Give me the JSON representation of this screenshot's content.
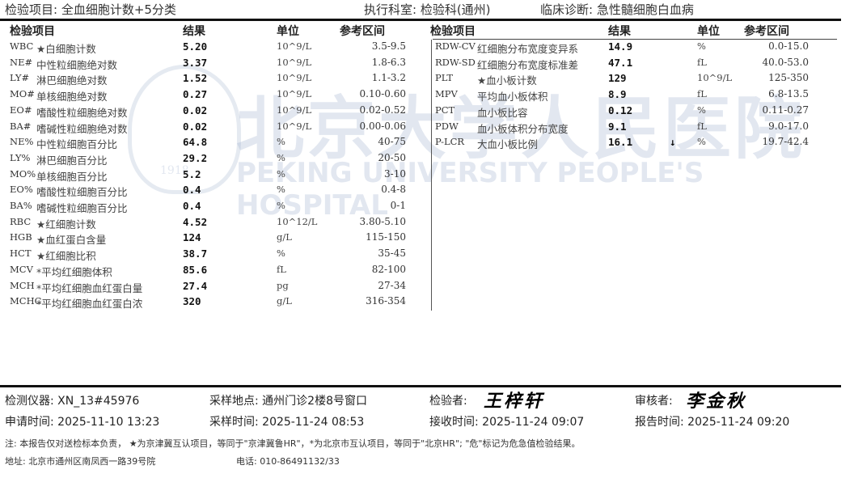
{
  "header": {
    "test_item": "检验项目: 全血细胞计数+5分类",
    "department": "执行科室: 检验科(通州)",
    "diagnosis": "临床诊断:  急性髓细胞白血病"
  },
  "watermark": {
    "cn": "北京大学人民医院",
    "en": "PEKING UNIVERSITY PEOPLE'S HOSPITAL",
    "seal_year": "1918"
  },
  "columns": {
    "item": "检验项目",
    "result": "结果",
    "unit": "单位",
    "ref": "参考区间"
  },
  "left_rows": [
    {
      "code": "WBC",
      "name": "★白细胞计数",
      "result": "5.20",
      "unit": "10^9/L",
      "ref": "3.5-9.5"
    },
    {
      "code": "NE#",
      "name": "中性粒细胞绝对数",
      "result": "3.37",
      "unit": "10^9/L",
      "ref": "1.8-6.3"
    },
    {
      "code": "LY#",
      "name": "淋巴细胞绝对数",
      "result": "1.52",
      "unit": "10^9/L",
      "ref": "1.1-3.2"
    },
    {
      "code": "MO#",
      "name": "单核细胞绝对数",
      "result": "0.27",
      "unit": "10^9/L",
      "ref": "0.10-0.60"
    },
    {
      "code": "EO#",
      "name": "嗜酸性粒细胞绝对数",
      "result": "0.02",
      "unit": "10^9/L",
      "ref": "0.02-0.52"
    },
    {
      "code": "BA#",
      "name": "嗜碱性粒细胞绝对数",
      "result": "0.02",
      "unit": "10^9/L",
      "ref": "0.00-0.06"
    },
    {
      "code": "NE%",
      "name": "中性粒细胞百分比",
      "result": "64.8",
      "unit": "%",
      "ref": "40-75"
    },
    {
      "code": "LY%",
      "name": "淋巴细胞百分比",
      "result": "29.2",
      "unit": "%",
      "ref": "20-50"
    },
    {
      "code": "MO%",
      "name": "单核细胞百分比",
      "result": "5.2",
      "unit": "%",
      "ref": "3-10"
    },
    {
      "code": "EO%",
      "name": "嗜酸性粒细胞百分比",
      "result": "0.4",
      "unit": "%",
      "ref": "0.4-8"
    },
    {
      "code": "BA%",
      "name": "嗜碱性粒细胞百分比",
      "result": "0.4",
      "unit": "%",
      "ref": "0-1"
    },
    {
      "code": "RBC",
      "name": "★红细胞计数",
      "result": "4.52",
      "unit": "10^12/L",
      "ref": "3.80-5.10"
    },
    {
      "code": "HGB",
      "name": "★血红蛋白含量",
      "result": "124",
      "unit": "g/L",
      "ref": "115-150"
    },
    {
      "code": "HCT",
      "name": "★红细胞比积",
      "result": "38.7",
      "unit": "%",
      "ref": "35-45"
    },
    {
      "code": "MCV",
      "name": "*平均红细胞体积",
      "result": "85.6",
      "unit": "fL",
      "ref": "82-100"
    },
    {
      "code": "MCH",
      "name": "*平均红细胞血红蛋白量",
      "result": "27.4",
      "unit": "pg",
      "ref": "27-34"
    },
    {
      "code": "MCHC",
      "name": "*平均红细胞血红蛋白浓",
      "result": "320",
      "unit": "g/L",
      "ref": "316-354"
    }
  ],
  "right_rows": [
    {
      "code": "RDW-CV",
      "name": "红细胞分布宽度变异系",
      "result": "14.9",
      "flag": "",
      "unit": "%",
      "ref": "0.0-15.0"
    },
    {
      "code": "RDW-SD",
      "name": "红细胞分布宽度标准差",
      "result": "47.1",
      "flag": "",
      "unit": "fL",
      "ref": "40.0-53.0"
    },
    {
      "code": "PLT",
      "name": "★血小板计数",
      "result": "129",
      "flag": "",
      "unit": "10^9/L",
      "ref": "125-350"
    },
    {
      "code": "MPV",
      "name": "平均血小板体积",
      "result": "8.9",
      "flag": "",
      "unit": "fL",
      "ref": "6.8-13.5"
    },
    {
      "code": "PCT",
      "name": "血小板比容",
      "result": "0.12",
      "flag": "",
      "unit": "%",
      "ref": "0.11-0.27"
    },
    {
      "code": "PDW",
      "name": "血小板体积分布宽度",
      "result": "9.1",
      "flag": "",
      "unit": "fL",
      "ref": "9.0-17.0"
    },
    {
      "code": "P-LCR",
      "name": "大血小板比例",
      "result": "16.1",
      "flag": "↓",
      "unit": "%",
      "ref": "19.7-42.4"
    }
  ],
  "footer": {
    "instrument": "检测仪器: XN_13#45976",
    "location": "采样地点: 通州门诊2楼8号窗口",
    "tester_label": "检验者:",
    "tester_signature": "王梓轩",
    "reviewer_label": "审核者:",
    "reviewer_signature": "李金秋",
    "request_time": "申请时间: 2025-11-10 13:23",
    "sample_time": "采样时间: 2025-11-24 08:53",
    "receive_time": "接收时间: 2025-11-24 09:07",
    "report_time": "报告时间: 2025-11-24 09:20",
    "note": "注: 本报告仅对送检标本负责，  ★为京津冀互认项目，等同于\"京津冀鲁HR\"，*为北京市互认项目，等同于\"北京HR\"; \"危\"标记为危急值检验结果。",
    "address": "地址: 北京市通州区南凤西一路39号院",
    "phone": "电话: 010-86491132/33"
  }
}
